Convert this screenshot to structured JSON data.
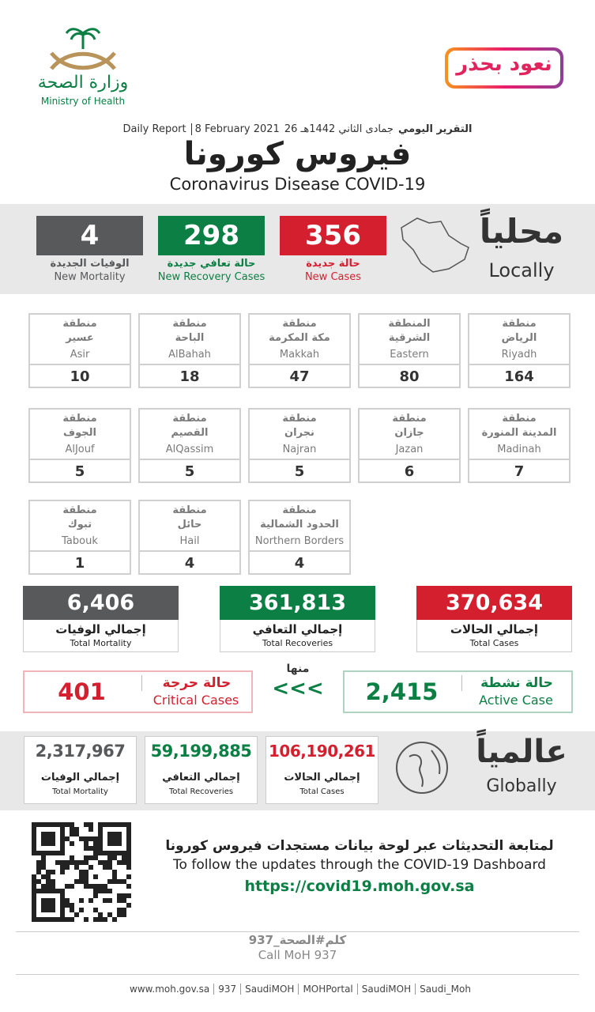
{
  "header": {
    "ministry_ar": "وزارة الصحة",
    "ministry_en": "Ministry of Health",
    "campaign": "نعود بحذر",
    "report_ar": "التقرير اليومي",
    "report_hijri": "26 جمادى الثاني 1442هـ",
    "report_date": "8 February 2021",
    "report_en": "Daily Report",
    "title_ar": "فيروس كورونا",
    "title_en": "Coronavirus Disease COVID-19"
  },
  "local": {
    "label_ar": "محلياً",
    "label_en": "Locally",
    "stats": [
      {
        "value": "356",
        "label_ar": "حالة جديدة",
        "label_en": "New Cases",
        "color": "#d41f2f"
      },
      {
        "value": "298",
        "label_ar": "حالة تعافي جديدة",
        "label_en": "New Recovery Cases",
        "color": "#0b7f44"
      },
      {
        "value": "4",
        "label_ar": "الوفيات الجديدة",
        "label_en": "New Mortality",
        "color": "#58595b"
      }
    ]
  },
  "regions": [
    {
      "prefix": "منطقة",
      "name_ar": "الرياض",
      "name_en": "Riyadh",
      "value": "164"
    },
    {
      "prefix": "المنطقة",
      "name_ar": "الشرقية",
      "name_en": "Eastern",
      "value": "80"
    },
    {
      "prefix": "منطقة",
      "name_ar": "مكة المكرمة",
      "name_en": "Makkah",
      "value": "47"
    },
    {
      "prefix": "منطقة",
      "name_ar": "الباحة",
      "name_en": "AlBahah",
      "value": "18"
    },
    {
      "prefix": "منطقة",
      "name_ar": "عسير",
      "name_en": "Asir",
      "value": "10"
    },
    {
      "prefix": "منطقة",
      "name_ar": "المدينة المنورة",
      "name_en": "Madinah",
      "value": "7"
    },
    {
      "prefix": "منطقة",
      "name_ar": "جازان",
      "name_en": "Jazan",
      "value": "6"
    },
    {
      "prefix": "منطقة",
      "name_ar": "نجران",
      "name_en": "Najran",
      "value": "5"
    },
    {
      "prefix": "منطقة",
      "name_ar": "القصيم",
      "name_en": "AlQassim",
      "value": "5"
    },
    {
      "prefix": "منطقة",
      "name_ar": "الجوف",
      "name_en": "AlJouf",
      "value": "5"
    },
    {
      "prefix": "منطقة",
      "name_ar": "الحدود الشمالية",
      "name_en": "Northern Borders",
      "value": "4"
    },
    {
      "prefix": "منطقة",
      "name_ar": "حائل",
      "name_en": "Hail",
      "value": "4"
    },
    {
      "prefix": "منطقة",
      "name_ar": "تبوك",
      "name_en": "Tabouk",
      "value": "1"
    }
  ],
  "totals": [
    {
      "value": "370,634",
      "label_ar": "إجمالي الحالات",
      "label_en": "Total Cases",
      "color": "#d41f2f"
    },
    {
      "value": "361,813",
      "label_ar": "إجمالي التعافي",
      "label_en": "Total Recoveries",
      "color": "#0b7f44"
    },
    {
      "value": "6,406",
      "label_ar": "إجمالي الوفيات",
      "label_en": "Total Mortality",
      "color": "#58595b"
    }
  ],
  "of_which": "منها",
  "arrows": "<<<",
  "active": {
    "label_ar": "حالة نشطة",
    "label_en": "Active Case",
    "value": "2,415",
    "color": "#0b7f44"
  },
  "critical": {
    "label_ar": "حالة حرجة",
    "label_en": "Critical Cases",
    "value": "401",
    "color": "#d41f2f"
  },
  "global": {
    "label_ar": "عالمياً",
    "label_en": "Globally",
    "stats": [
      {
        "value": "106,190,261",
        "label_ar": "إجمالي الحالات",
        "label_en": "Total Cases",
        "color": "#d41f2f"
      },
      {
        "value": "59,199,885",
        "label_ar": "إجمالي التعافي",
        "label_en": "Total Recoveries",
        "color": "#0b7f44"
      },
      {
        "value": "2,317,967",
        "label_ar": "إجمالي الوفيات",
        "label_en": "Total Mortality",
        "color": "#58595b"
      }
    ]
  },
  "follow": {
    "text_ar": "لمتابعة التحديثات عبر لوحة بيانات مستجدات فيروس كورونا",
    "text_en": "To follow the updates through the COVID-19 Dashboard",
    "url": "https://covid19.moh.gov.sa"
  },
  "call": {
    "text_ar": "كلم#الصحة_937",
    "text_en": "Call MoH 937"
  },
  "social": [
    "www.moh.gov.sa",
    "937",
    "SaudiMOH",
    "MOHPortal",
    "SaudiMOH",
    "Saudi_Moh"
  ]
}
